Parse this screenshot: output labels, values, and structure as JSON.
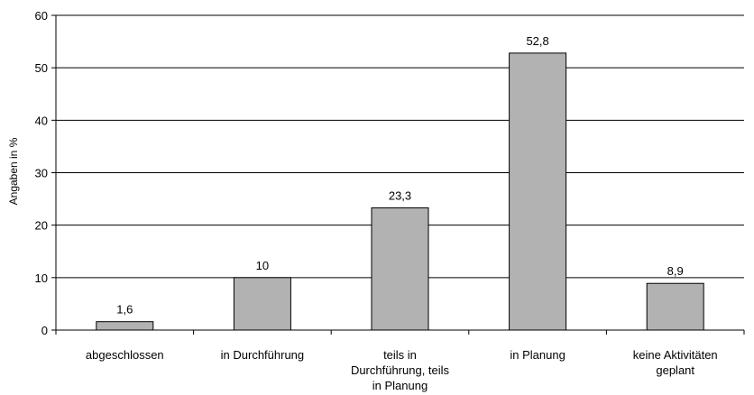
{
  "chart_data": {
    "type": "bar",
    "title": "",
    "xlabel": "",
    "ylabel": "Angaben in %",
    "ylim": [
      0,
      60
    ],
    "yticks": [
      "0",
      "10",
      "20",
      "30",
      "40",
      "50",
      "60"
    ],
    "grid": true,
    "bar_color": "#b2b2b2",
    "categories": [
      [
        "abgeschlossen"
      ],
      [
        "in Durchführung"
      ],
      [
        "teils in",
        "Durchführung, teils",
        "in Planung"
      ],
      [
        "in Planung"
      ],
      [
        "keine Aktivitäten",
        "geplant"
      ]
    ],
    "values": [
      1.6,
      10,
      23.3,
      52.8,
      8.9
    ],
    "data_labels": [
      "1,6",
      "10",
      "23,3",
      "52,8",
      "8,9"
    ]
  }
}
